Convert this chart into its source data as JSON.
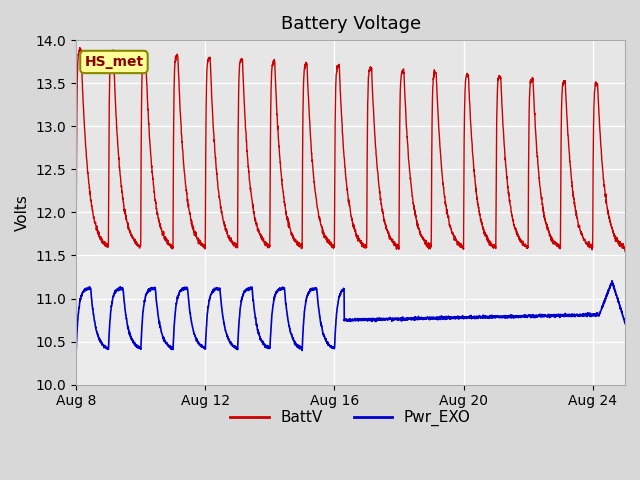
{
  "title": "Battery Voltage",
  "ylabel": "Volts",
  "ylim": [
    10.0,
    14.0
  ],
  "yticks": [
    10.0,
    10.5,
    11.0,
    11.5,
    12.0,
    12.5,
    13.0,
    13.5,
    14.0
  ],
  "xtick_labels": [
    "Aug 8",
    "Aug 12",
    "Aug 16",
    "Aug 20",
    "Aug 24"
  ],
  "background_color": "#d8d8d8",
  "plot_bg_color": "#ebebeb",
  "title_fontsize": 13,
  "axis_fontsize": 11,
  "legend_labels": [
    "BattV",
    "Pwr_EXO"
  ],
  "legend_colors": [
    "#cc0000",
    "#0000cc"
  ],
  "annotation_text": "HS_met",
  "annotation_bg": "#ffff99",
  "annotation_border": "#888800",
  "xlim": [
    0,
    17
  ],
  "xtick_positions": [
    0,
    4,
    8,
    12,
    16
  ]
}
